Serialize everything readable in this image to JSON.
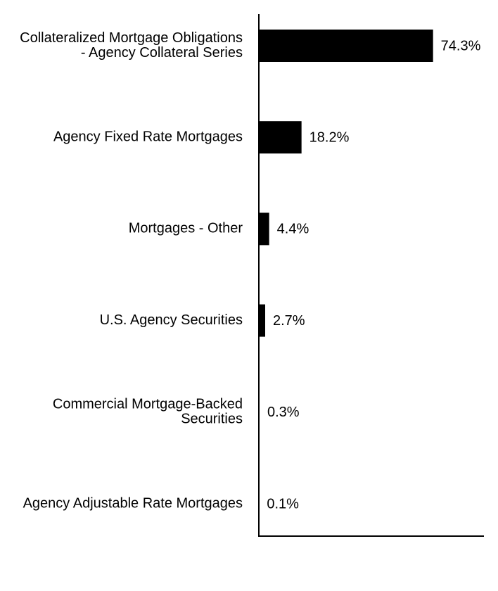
{
  "chart_data": {
    "type": "bar",
    "orientation": "horizontal",
    "categories": [
      [
        "Collateralized Mortgage Obligations",
        "- Agency Collateral Series"
      ],
      [
        "Agency Fixed Rate Mortgages"
      ],
      [
        "Mortgages - Other"
      ],
      [
        "U.S. Agency Securities"
      ],
      [
        "Commercial Mortgage-Backed",
        "Securities"
      ],
      [
        "Agency Adjustable Rate Mortgages"
      ]
    ],
    "values": [
      74.3,
      18.2,
      4.4,
      2.7,
      0.3,
      0.1
    ],
    "data_labels": [
      "74.3%",
      "18.2%",
      "4.4%",
      "2.7%",
      "0.3%",
      "0.1%"
    ],
    "xlim": [
      0,
      96
    ],
    "grid": false,
    "legend": "none",
    "bar_color": "#000000",
    "axis_color": "#000000"
  }
}
